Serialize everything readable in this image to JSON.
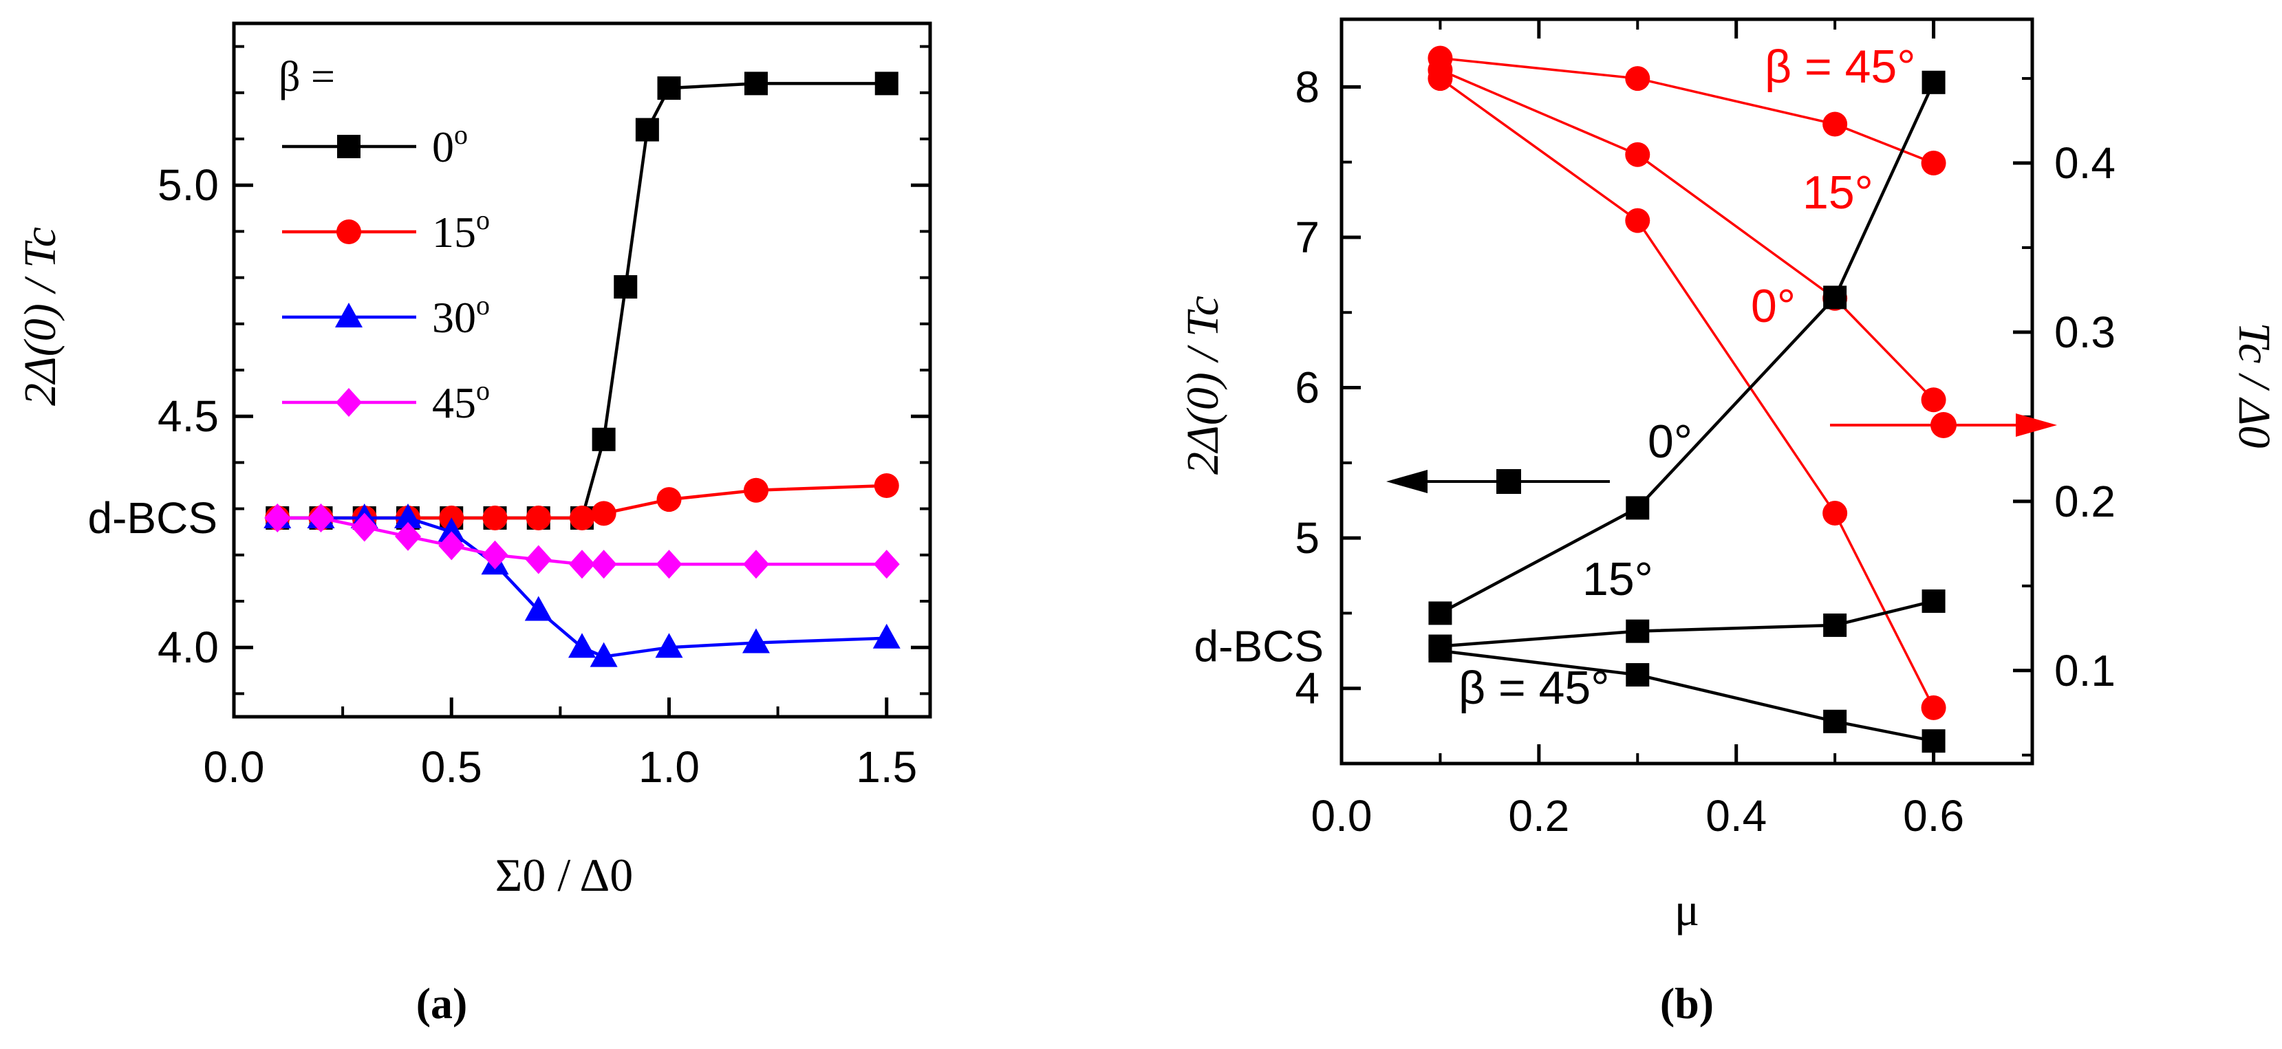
{
  "colors": {
    "black": "#000000",
    "red": "#ff0000",
    "blue": "#0000ff",
    "magenta": "#ff00ff"
  },
  "chart_data": [
    {
      "type": "line",
      "panel_label": "(a)",
      "xlabel": "Σ0 / Δ0",
      "ylabel": "2Δ(0) / Tc",
      "xlim": [
        0.0,
        1.6
      ],
      "ylim": [
        3.85,
        5.35
      ],
      "xticks": [
        0.0,
        0.5,
        1.0,
        1.5
      ],
      "yticks": [
        4.0,
        4.5,
        5.0
      ],
      "ytick_labels": [
        "4.0",
        "4.5",
        "5.0"
      ],
      "special_ytick": {
        "value": 4.28,
        "label": "d-BCS"
      },
      "legend_title": "β =",
      "series": [
        {
          "name": "0o",
          "color": "#000000",
          "marker": "square",
          "x": [
            0.1,
            0.2,
            0.3,
            0.4,
            0.5,
            0.6,
            0.7,
            0.8,
            0.85,
            0.9,
            0.95,
            1.0,
            1.2,
            1.5
          ],
          "y": [
            4.28,
            4.28,
            4.28,
            4.28,
            4.28,
            4.28,
            4.28,
            4.28,
            4.45,
            4.78,
            5.12,
            5.21,
            5.22,
            5.22
          ]
        },
        {
          "name": "15o",
          "color": "#ff0000",
          "marker": "circle",
          "x": [
            0.1,
            0.2,
            0.3,
            0.4,
            0.5,
            0.6,
            0.7,
            0.8,
            0.85,
            1.0,
            1.2,
            1.5
          ],
          "y": [
            4.28,
            4.28,
            4.28,
            4.28,
            4.28,
            4.28,
            4.28,
            4.28,
            4.29,
            4.32,
            4.34,
            4.35
          ]
        },
        {
          "name": "30o",
          "color": "#0000ff",
          "marker": "triangle",
          "x": [
            0.1,
            0.2,
            0.3,
            0.4,
            0.5,
            0.6,
            0.7,
            0.8,
            0.85,
            1.0,
            1.2,
            1.5
          ],
          "y": [
            4.28,
            4.28,
            4.28,
            4.28,
            4.25,
            4.18,
            4.08,
            4.0,
            3.98,
            4.0,
            4.01,
            4.02
          ]
        },
        {
          "name": "45o",
          "color": "#ff00ff",
          "marker": "diamond",
          "x": [
            0.1,
            0.2,
            0.3,
            0.4,
            0.5,
            0.6,
            0.7,
            0.8,
            0.85,
            1.0,
            1.2,
            1.5
          ],
          "y": [
            4.28,
            4.28,
            4.26,
            4.24,
            4.22,
            4.2,
            4.19,
            4.18,
            4.18,
            4.18,
            4.18,
            4.18
          ]
        }
      ]
    },
    {
      "type": "line",
      "panel_label": "(b)",
      "xlabel": "μ",
      "ylabel_left": "2Δ(0) / Tc",
      "ylabel_right": "Tc / Δ0",
      "xlim": [
        0.0,
        0.7
      ],
      "xticks": [
        0.0,
        0.2,
        0.4,
        0.6
      ],
      "ylim_left": [
        3.5,
        8.45
      ],
      "yticks_left": [
        4,
        5,
        6,
        7,
        8
      ],
      "special_ytick_left": {
        "value": 4.28,
        "label": "d-BCS"
      },
      "ylim_right": [
        0.045,
        0.485
      ],
      "yticks_right": [
        0.1,
        0.2,
        0.3,
        0.4
      ],
      "series_left_axis": [
        {
          "name": "0°",
          "color": "#000000",
          "marker": "square",
          "x": [
            0.1,
            0.3,
            0.5,
            0.6
          ],
          "y": [
            4.5,
            5.2,
            6.6,
            8.03
          ]
        },
        {
          "name": "15°",
          "color": "#000000",
          "marker": "square",
          "x": [
            0.1,
            0.3,
            0.5,
            0.6
          ],
          "y": [
            4.28,
            4.38,
            4.42,
            4.58
          ]
        },
        {
          "name": "β = 45°",
          "color": "#000000",
          "marker": "square",
          "x": [
            0.1,
            0.3,
            0.5,
            0.6
          ],
          "y": [
            4.25,
            4.09,
            3.78,
            3.65
          ]
        }
      ],
      "series_right_axis": [
        {
          "name": "β = 45°",
          "color": "#ff0000",
          "marker": "circle",
          "x": [
            0.1,
            0.3,
            0.5,
            0.6
          ],
          "y": [
            0.462,
            0.45,
            0.423,
            0.4
          ]
        },
        {
          "name": "15°",
          "color": "#ff0000",
          "marker": "circle",
          "x": [
            0.1,
            0.3,
            0.5,
            0.6
          ],
          "y": [
            0.455,
            0.405,
            0.32,
            0.26
          ]
        },
        {
          "name": "0°",
          "color": "#ff0000",
          "marker": "circle",
          "x": [
            0.1,
            0.3,
            0.5,
            0.6
          ],
          "y": [
            0.45,
            0.366,
            0.193,
            0.078
          ]
        }
      ],
      "annotations": {
        "black_0": "0°",
        "black_15": "15°",
        "black_45": "β = 45°",
        "red_45": "β = 45°",
        "red_15": "15°",
        "red_0": "0°"
      }
    }
  ]
}
